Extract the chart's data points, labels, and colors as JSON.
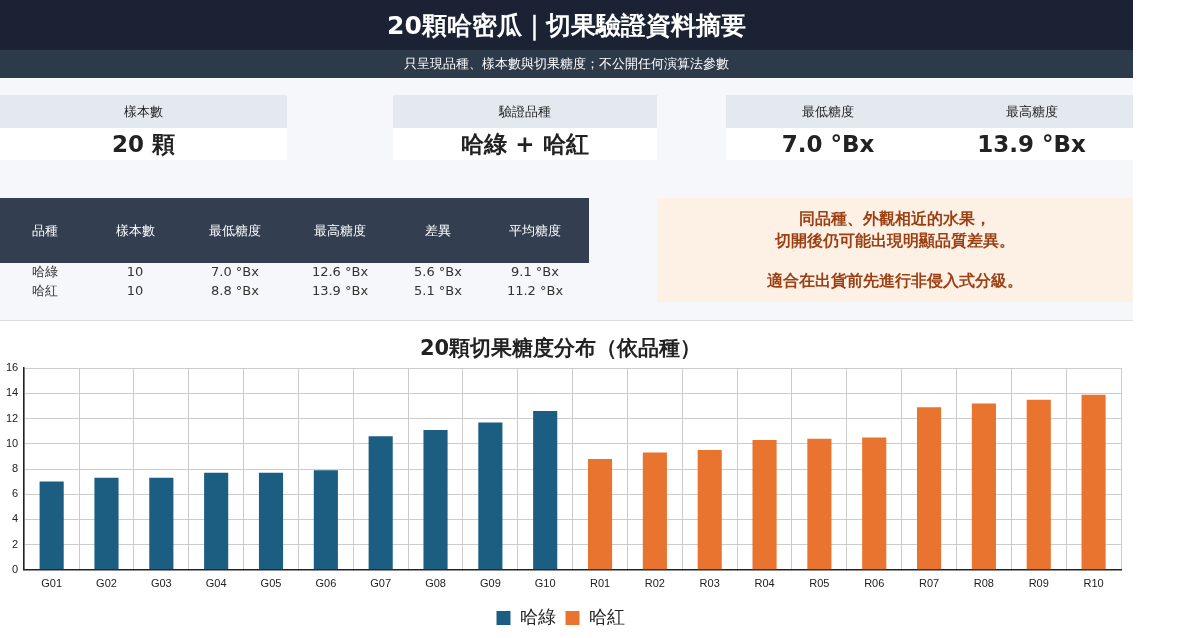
{
  "chart_data": [
    {
      "type": "other",
      "title": "20顆哈密瓜｜切果驗證資料摘要",
      "subtitle": "只呈現品種、樣本數與切果糖度；不公開任何演算法參數",
      "annotations": [
        "樣本數",
        "20 顆",
        "驗證品種",
        "哈綠 + 哈紅",
        "最低糖度",
        "7.0 °Bx",
        "最高糖度",
        "13.9 °Bx",
        "品種",
        "樣本數",
        "最低糖度",
        "最高糖度",
        "差異",
        "平均糖度",
        "哈綠",
        "10",
        "7.0 °Bx",
        "12.6 °Bx",
        "5.6 °Bx",
        "9.1 °Bx",
        "哈紅",
        "10",
        "8.8 °Bx",
        "13.9 °Bx",
        "5.1 °Bx",
        "11.2 °Bx",
        "同品種、外觀相近的水果，",
        "切開後仍可能出現明顯品質差異。",
        "適合在出貨前先進行非侵入式分級。"
      ]
    },
    {
      "type": "bar",
      "title": "20顆切果糖度分布（依品種）",
      "categories": [
        "G01",
        "G02",
        "G03",
        "G04",
        "G05",
        "G06",
        "G07",
        "G08",
        "G09",
        "G10",
        "R01",
        "R02",
        "R03",
        "R04",
        "R05",
        "R06",
        "R07",
        "R08",
        "R09",
        "R10"
      ],
      "series": [
        {
          "name": "哈綠",
          "color": "#1b5e82",
          "values": [
            7.0,
            7.3,
            7.3,
            7.7,
            7.7,
            7.9,
            10.6,
            11.1,
            11.7,
            12.6,
            null,
            null,
            null,
            null,
            null,
            null,
            null,
            null,
            null,
            null
          ]
        },
        {
          "name": "哈紅",
          "color": "#e8742f",
          "values": [
            null,
            null,
            null,
            null,
            null,
            null,
            null,
            null,
            null,
            null,
            8.8,
            9.3,
            9.5,
            10.3,
            10.4,
            10.5,
            12.9,
            13.2,
            13.5,
            13.9
          ]
        }
      ],
      "ylim": [
        0,
        16
      ],
      "yticks": [
        0,
        2,
        4,
        6,
        8,
        10,
        12,
        14,
        16
      ],
      "grid": true,
      "legend": "bottom"
    }
  ]
}
